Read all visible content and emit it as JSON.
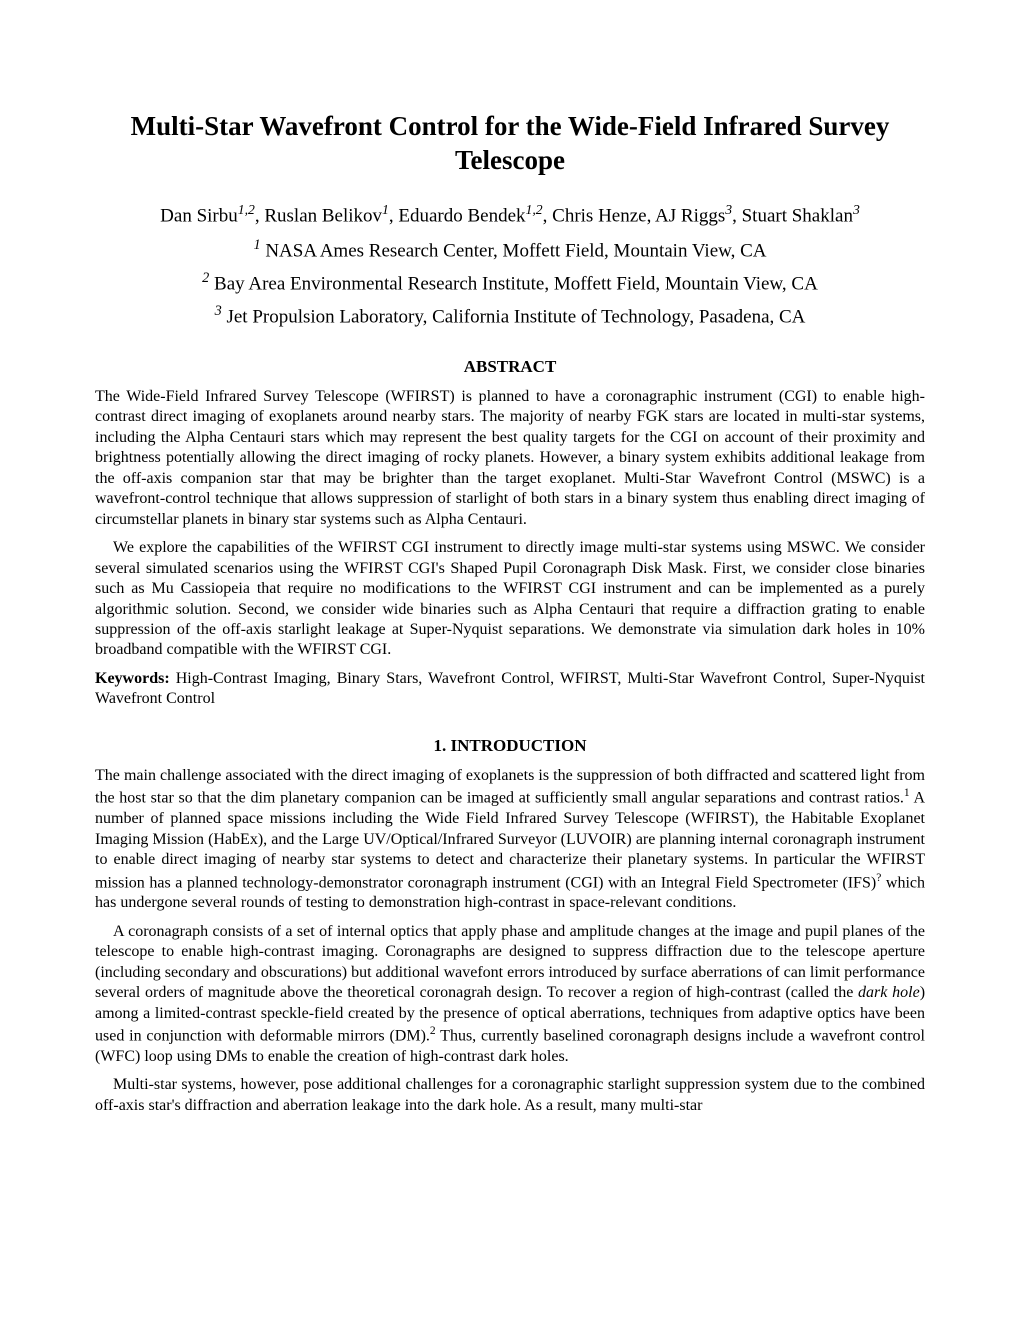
{
  "title": "Multi-Star Wavefront Control for the Wide-Field Infrared Survey Telescope",
  "authors": {
    "a1": {
      "name": "Dan Sirbu",
      "sup": "1,2"
    },
    "a2": {
      "name": "Ruslan Belikov",
      "sup": "1"
    },
    "a3": {
      "name": "Eduardo Bendek",
      "sup": "1,2"
    },
    "a4": {
      "name": "Chris Henze"
    },
    "a5": {
      "name": "AJ Riggs",
      "sup": "3"
    },
    "a6": {
      "name": "Stuart Shaklan",
      "sup": "3"
    }
  },
  "affiliations": {
    "af1": {
      "sup": "1",
      "text": " NASA Ames Research Center, Moffett Field, Mountain View, CA"
    },
    "af2": {
      "sup": "2",
      "text": " Bay Area Environmental Research Institute, Moffett Field, Mountain View, CA"
    },
    "af3": {
      "sup": "3",
      "text": " Jet Propulsion Laboratory, California Institute of Technology, Pasadena, CA"
    }
  },
  "abstract_heading": "ABSTRACT",
  "abstract": {
    "p1": "The Wide-Field Infrared Survey Telescope (WFIRST) is planned to have a coronagraphic instrument (CGI) to enable high-contrast direct imaging of exoplanets around nearby stars. The majority of nearby FGK stars are located in multi-star systems, including the Alpha Centauri stars which may represent the best quality targets for the CGI on account of their proximity and brightness potentially allowing the direct imaging of rocky planets. However, a binary system exhibits additional leakage from the off-axis companion star that may be brighter than the target exoplanet. Multi-Star Wavefront Control (MSWC) is a wavefront-control technique that allows suppression of starlight of both stars in a binary system thus enabling direct imaging of circumstellar planets in binary star systems such as Alpha Centauri.",
    "p2": "We explore the capabilities of the WFIRST CGI instrument to directly image multi-star systems using MSWC. We consider several simulated scenarios using the WFIRST CGI's Shaped Pupil Coronagraph Disk Mask. First, we consider close binaries such as Mu Cassiopeia that require no modifications to the WFIRST CGI instrument and can be implemented as a purely algorithmic solution. Second, we consider wide binaries such as Alpha Centauri that require a diffraction grating to enable suppression of the off-axis starlight leakage at Super-Nyquist separations. We demonstrate via simulation dark holes in 10% broadband compatible with the WFIRST CGI."
  },
  "keywords_label": "Keywords:",
  "keywords_text": "  High-Contrast Imaging, Binary Stars, Wavefront Control, WFIRST, Multi-Star Wavefront Control, Super-Nyquist Wavefront Control",
  "section1_heading": "1. INTRODUCTION",
  "intro": {
    "p1a": "The main challenge associated with the direct imaging of exoplanets is the suppression of both diffracted and scattered light from the host star so that the dim planetary companion can be imaged at sufficiently small angular separations and contrast ratios.",
    "p1b": " A number of planned space missions including the Wide Field Infrared Survey Telescope (WFIRST), the Habitable Exoplanet Imaging Mission (HabEx), and the Large UV/Optical/Infrared Surveyor (LUVOIR) are planning internal coronagraph instrument to enable direct imaging of nearby star systems to detect and characterize their planetary systems. In particular the WFIRST mission has a planned technology-demonstrator coronagraph instrument (CGI) with an Integral Field Spectrometer (IFS)",
    "p1c": " which has undergone several rounds of testing to demonstration high-contrast in space-relevant conditions.",
    "p2a": "A coronagraph consists of a set of internal optics that apply phase and amplitude changes at the image and pupil planes of the telescope to enable high-contrast imaging. Coronagraphs are designed to suppress diffraction due to the telescope aperture (including secondary and obscurations) but additional wavefont errors introduced by surface aberrations of can limit performance several orders of magnitude above the theoretical coronagrah design. To recover a region of high-contrast (called the ",
    "p2_dh": "dark hole",
    "p2b": ") among a limited-contrast speckle-field created by the presence of optical aberrations, techniques from adaptive optics have been used in conjunction with deformable mirrors (DM).",
    "p2c": " Thus, currently baselined coronagraph designs include a wavefront control (WFC) loop using DMs to enable the creation of high-contrast dark holes.",
    "p3": "Multi-star systems, however, pose additional challenges for a coronagraphic starlight suppression system due to the combined off-axis star's diffraction and aberration leakage into the dark hole. As a result, many multi-star"
  },
  "citations": {
    "c1": "1",
    "c2": "2",
    "cq": "?"
  }
}
